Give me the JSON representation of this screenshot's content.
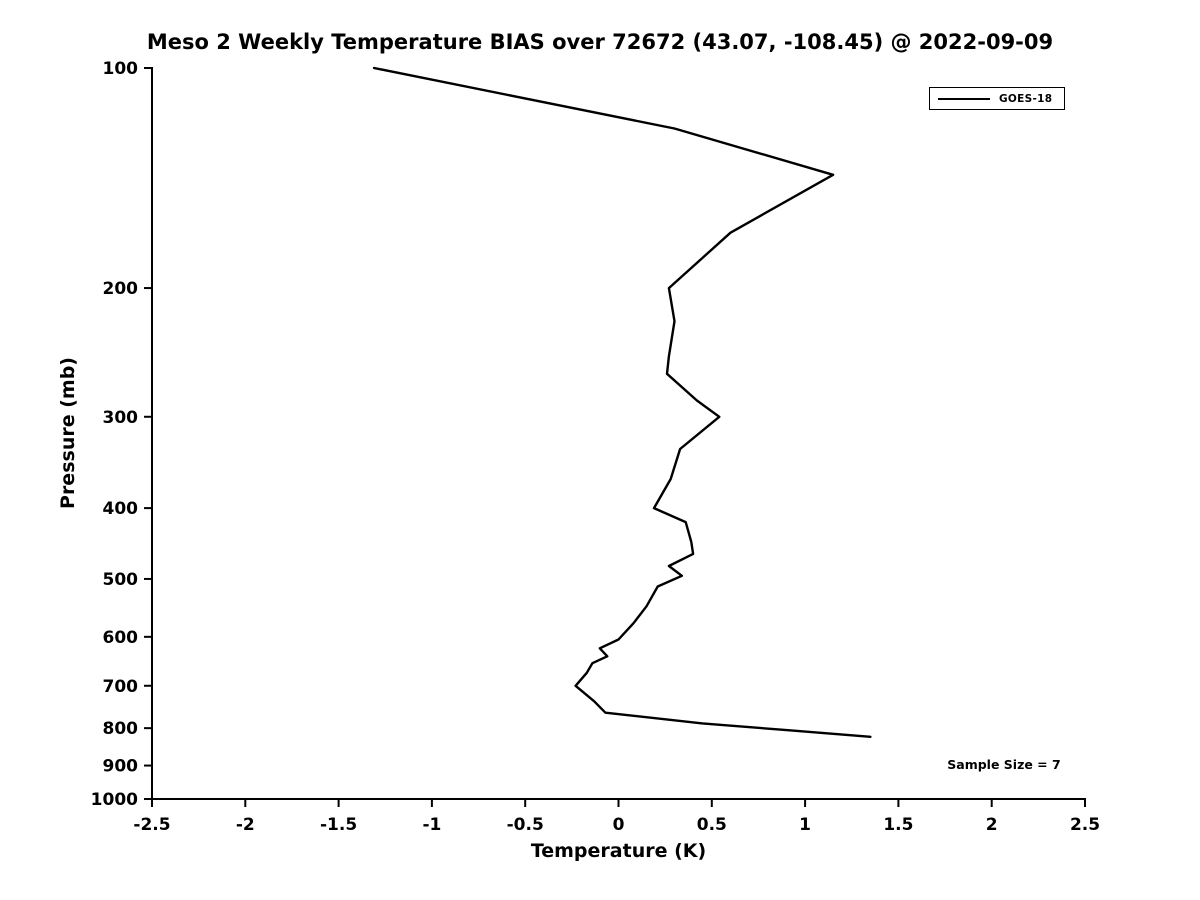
{
  "chart_data": {
    "type": "line",
    "title": "Meso 2 Weekly Temperature BIAS over 72672 (43.07, -108.45) @ 2022-09-09",
    "xlabel": "Temperature (K)",
    "ylabel": "Pressure (mb)",
    "xlim": [
      -2.5,
      2.5
    ],
    "ylim_pressure_top": 100,
    "ylim_pressure_bottom": 1000,
    "yscale": "log",
    "grid": false,
    "x_ticks": [
      -2.5,
      -2,
      -1.5,
      -1,
      -0.5,
      0,
      0.5,
      1,
      1.5,
      2,
      2.5
    ],
    "y_ticks": [
      100,
      200,
      300,
      400,
      500,
      600,
      700,
      800,
      900,
      1000
    ],
    "legend": {
      "position": "upper right",
      "entries": [
        {
          "label": "GOES-18",
          "color": "#000000"
        }
      ]
    },
    "annotation": "Sample Size = 7",
    "line_color": "#000000",
    "series": [
      {
        "name": "GOES-18",
        "color": "#000000",
        "points_temp_pressure": [
          [
            -1.31,
            100
          ],
          [
            0.3,
            121
          ],
          [
            1.15,
            140
          ],
          [
            0.6,
            168
          ],
          [
            0.27,
            200
          ],
          [
            0.3,
            222
          ],
          [
            0.27,
            248
          ],
          [
            0.26,
            262
          ],
          [
            0.42,
            285
          ],
          [
            0.54,
            300
          ],
          [
            0.33,
            332
          ],
          [
            0.28,
            365
          ],
          [
            0.19,
            400
          ],
          [
            0.36,
            418
          ],
          [
            0.39,
            445
          ],
          [
            0.4,
            462
          ],
          [
            0.27,
            480
          ],
          [
            0.34,
            495
          ],
          [
            0.21,
            512
          ],
          [
            0.15,
            545
          ],
          [
            0.08,
            575
          ],
          [
            0.0,
            605
          ],
          [
            -0.1,
            622
          ],
          [
            -0.06,
            638
          ],
          [
            -0.14,
            652
          ],
          [
            -0.17,
            672
          ],
          [
            -0.23,
            700
          ],
          [
            -0.13,
            735
          ],
          [
            -0.07,
            762
          ],
          [
            0.45,
            788
          ],
          [
            0.9,
            805
          ],
          [
            1.35,
            822
          ]
        ]
      }
    ]
  }
}
